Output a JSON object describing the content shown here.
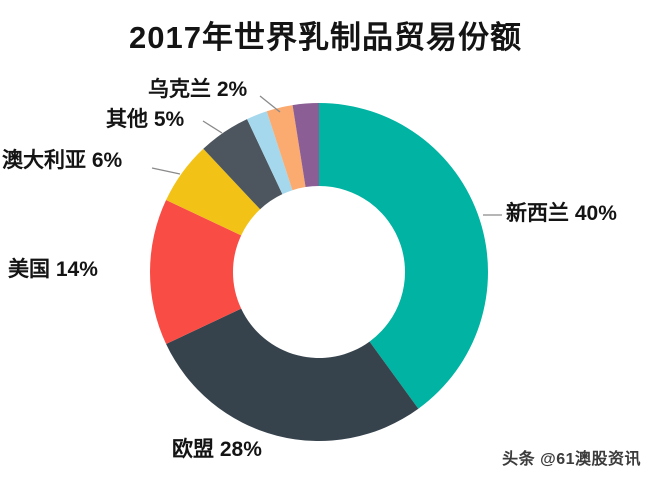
{
  "title": "2017年世界乳制品贸易份额",
  "watermark": "头条 @61澳股资讯",
  "chart_data": {
    "type": "pie",
    "subtype": "donut",
    "title": "2017年世界乳制品贸易份额",
    "direction": "clockwise",
    "start_angle_deg": 0,
    "slices": [
      {
        "label": "新西兰",
        "pct": 40,
        "color": "#00b3a2"
      },
      {
        "label": "欧盟",
        "pct": 28,
        "color": "#36424c"
      },
      {
        "label": "美国",
        "pct": 14,
        "color": "#f94c45"
      },
      {
        "label": "澳大利亚",
        "pct": 6,
        "color": "#f2c216"
      },
      {
        "label": "其他",
        "pct": 5,
        "color": "#4d565e"
      },
      {
        "label": "乌克兰",
        "pct": 2,
        "color": "#a5d8ed"
      },
      {
        "label": "",
        "pct": 2.5,
        "color": "#fbaa70"
      },
      {
        "label": "",
        "pct": 2.5,
        "color": "#8b5f96"
      }
    ],
    "labels": [
      {
        "id": "ukraine",
        "text": "乌克兰 2%"
      },
      {
        "id": "other",
        "text": "其他 5%"
      },
      {
        "id": "australia",
        "text": "澳大利亚 6%"
      },
      {
        "id": "usa",
        "text": "美国 14%"
      },
      {
        "id": "eu",
        "text": "欧盟 28%"
      },
      {
        "id": "nz",
        "text": "新西兰 40%"
      }
    ],
    "leader_line_color": "#8a8a8a"
  }
}
